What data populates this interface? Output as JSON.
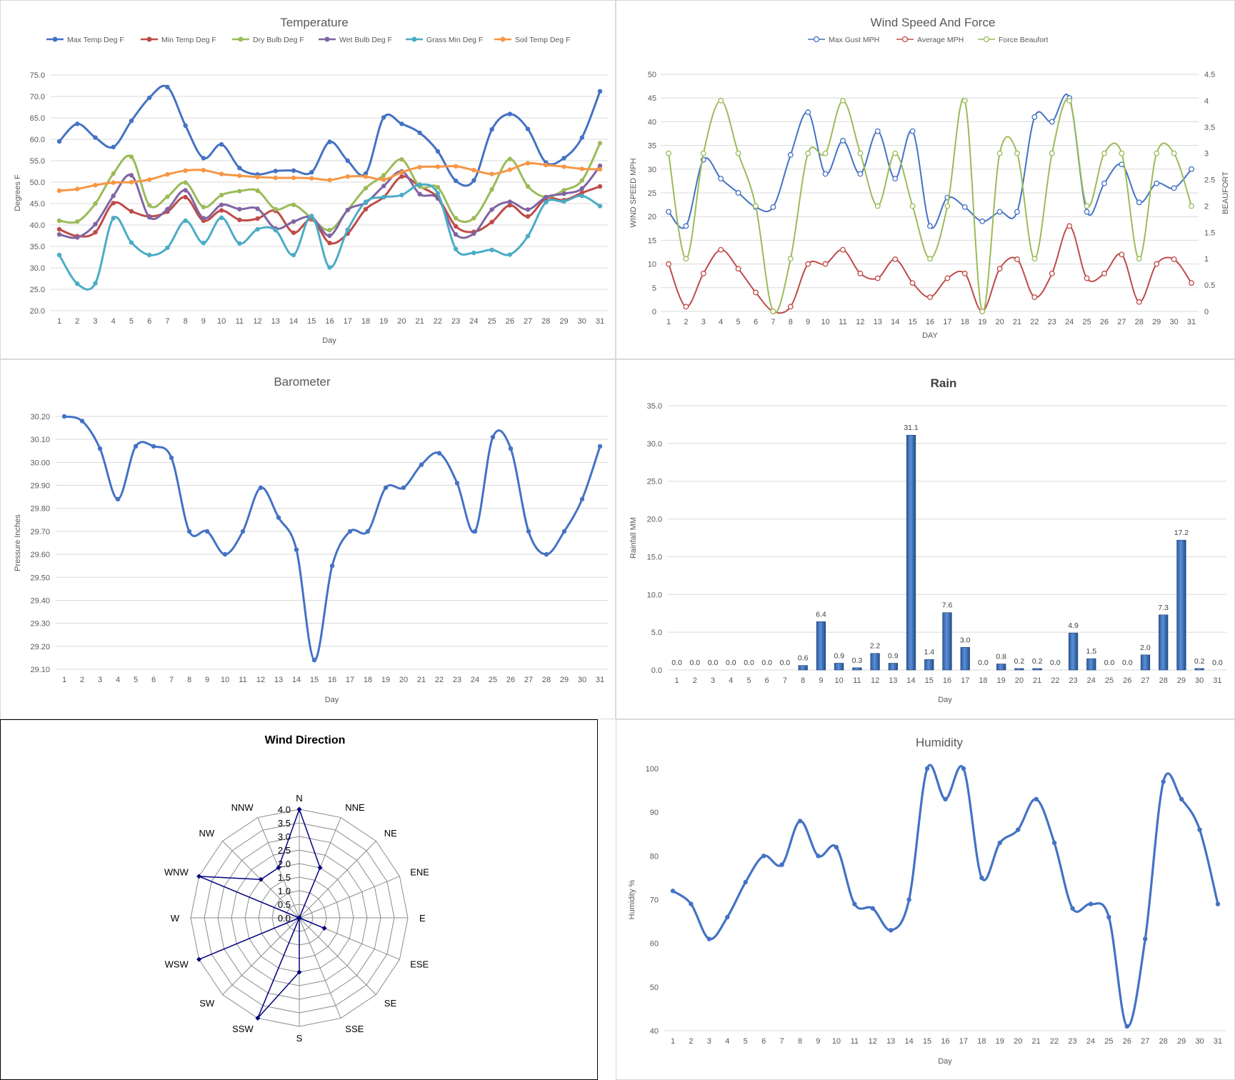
{
  "chart_data": [
    {
      "id": "temperature",
      "type": "line",
      "title": "Temperature",
      "xlabel": "Day",
      "ylabel": "Degrees F",
      "ylim": [
        20,
        75
      ],
      "ystep": 5,
      "ydecimals": 1,
      "grid": true,
      "legend": "top",
      "x": [
        1,
        2,
        3,
        4,
        5,
        6,
        7,
        8,
        9,
        10,
        11,
        12,
        13,
        14,
        15,
        16,
        17,
        18,
        19,
        20,
        21,
        22,
        23,
        24,
        25,
        26,
        27,
        28,
        29,
        30,
        31
      ],
      "series": [
        {
          "name": "Max Temp Deg F",
          "color": "#4472c4",
          "values": [
            59.5,
            63.6,
            60.4,
            58.2,
            64.3,
            69.7,
            72.2,
            63.2,
            55.6,
            58.8,
            53.3,
            51.8,
            52.6,
            52.7,
            52.3,
            59.4,
            55.0,
            52.0,
            65.1,
            63.6,
            61.5,
            57.2,
            50.3,
            50.4,
            62.3,
            65.9,
            62.4,
            54.6,
            55.6,
            60.4,
            71.2
          ]
        },
        {
          "name": "Min Temp Deg F",
          "color": "#be4b48",
          "values": [
            39.0,
            37.4,
            38.3,
            45.1,
            43.2,
            42.0,
            43.1,
            46.5,
            41.0,
            43.4,
            41.2,
            41.5,
            43.3,
            38.2,
            41.3,
            35.8,
            38.0,
            43.7,
            46.5,
            51.3,
            49.0,
            46.4,
            39.7,
            38.4,
            40.7,
            44.6,
            42.0,
            46.2,
            45.8,
            47.5,
            49.0
          ]
        },
        {
          "name": "Dry Bulb Deg F",
          "color": "#9bbb59",
          "values": [
            41.0,
            40.8,
            45.0,
            52.0,
            55.9,
            44.6,
            46.6,
            49.9,
            44.2,
            47.0,
            47.9,
            48.0,
            43.7,
            44.7,
            41.6,
            38.8,
            43.5,
            48.6,
            51.6,
            55.3,
            49.0,
            48.8,
            41.6,
            41.6,
            48.3,
            55.4,
            49.0,
            46.5,
            48.1,
            50.4,
            59.1
          ]
        },
        {
          "name": "Wet Bulb Deg F",
          "color": "#8064a2",
          "values": [
            37.8,
            37.1,
            40.2,
            46.8,
            51.6,
            41.8,
            43.7,
            48.1,
            41.6,
            44.7,
            43.7,
            43.8,
            39.2,
            40.8,
            41.8,
            37.5,
            43.5,
            45.2,
            49.1,
            52.5,
            47.2,
            46.2,
            37.8,
            38.0,
            43.6,
            45.4,
            43.6,
            46.5,
            47.3,
            48.5,
            53.8
          ]
        },
        {
          "name": "Grass Min Deg F",
          "color": "#4bacc6",
          "values": [
            33.0,
            26.3,
            26.4,
            41.6,
            35.9,
            33.0,
            34.7,
            41.0,
            35.8,
            41.7,
            35.7,
            39.0,
            38.8,
            33.0,
            42.1,
            30.1,
            38.9,
            45.4,
            46.5,
            47.0,
            49.4,
            47.4,
            34.4,
            33.5,
            34.2,
            33.1,
            37.4,
            45.3,
            45.5,
            46.8,
            44.4
          ]
        },
        {
          "name": "Soil Temp Deg F",
          "color": "#f79646",
          "values": [
            48.0,
            48.4,
            49.3,
            49.9,
            50.0,
            50.6,
            51.8,
            52.7,
            52.8,
            51.9,
            51.5,
            51.2,
            51.0,
            51.0,
            50.9,
            50.5,
            51.3,
            51.3,
            50.6,
            52.3,
            53.5,
            53.6,
            53.7,
            52.8,
            51.9,
            52.9,
            54.4,
            54.0,
            53.6,
            53.1,
            53.0
          ]
        }
      ]
    },
    {
      "id": "wind_speed",
      "type": "line",
      "title": "Wind Speed And Force",
      "xlabel": "DAY",
      "ylabel": "WIND SPEED MPH",
      "y2label": "BEAUFORT",
      "ylim": [
        0,
        50
      ],
      "ystep": 5,
      "y2lim": [
        0,
        4.5
      ],
      "y2step": 0.5,
      "grid": true,
      "legend": "top",
      "x": [
        1,
        2,
        3,
        4,
        5,
        6,
        7,
        8,
        9,
        10,
        11,
        12,
        13,
        14,
        15,
        16,
        17,
        18,
        19,
        20,
        21,
        22,
        23,
        24,
        25,
        26,
        27,
        28,
        29,
        30,
        31
      ],
      "series": [
        {
          "name": "Max Gust MPH",
          "color": "#4472c4",
          "axis": "left",
          "values": [
            21,
            18,
            32,
            28,
            25,
            22,
            22,
            33,
            42,
            29,
            36,
            29,
            38,
            28,
            38,
            18,
            24,
            22,
            19,
            21,
            21,
            41,
            40,
            45,
            21,
            27,
            31,
            23,
            27,
            26,
            30
          ]
        },
        {
          "name": "Average MPH",
          "color": "#be4b48",
          "axis": "left",
          "values": [
            10,
            1,
            8,
            13,
            9,
            4,
            0,
            1,
            10,
            10,
            13,
            8,
            7,
            11,
            6,
            3,
            7,
            8,
            0,
            9,
            11,
            3,
            8,
            18,
            7,
            8,
            12,
            2,
            10,
            11,
            6
          ]
        },
        {
          "name": "Force Beaufort",
          "color": "#9bbb59",
          "axis": "right",
          "values": [
            3,
            1,
            3,
            4,
            3,
            2,
            0,
            1,
            3,
            3,
            4,
            3,
            2,
            3,
            2,
            1,
            2,
            4,
            0,
            3,
            3,
            1,
            3,
            4,
            2,
            3,
            3,
            1,
            3,
            3,
            2
          ]
        }
      ]
    },
    {
      "id": "barometer",
      "type": "line",
      "title": "Barometer",
      "xlabel": "Day",
      "ylabel": "Pressure Inches",
      "ylim": [
        29.1,
        30.2
      ],
      "ystep": 0.1,
      "ydecimals": 2,
      "grid": true,
      "x": [
        1,
        2,
        3,
        4,
        5,
        6,
        7,
        8,
        9,
        10,
        11,
        12,
        13,
        14,
        15,
        16,
        17,
        18,
        19,
        20,
        21,
        22,
        23,
        24,
        25,
        26,
        27,
        28,
        29,
        30,
        31
      ],
      "series": [
        {
          "name": "",
          "color": "#4472c4",
          "values": [
            30.2,
            30.18,
            30.06,
            29.84,
            30.07,
            30.07,
            30.02,
            29.7,
            29.7,
            29.6,
            29.7,
            29.89,
            29.76,
            29.62,
            29.14,
            29.55,
            29.7,
            29.7,
            29.89,
            29.89,
            29.99,
            30.04,
            29.91,
            29.7,
            30.11,
            30.06,
            29.7,
            29.6,
            29.7,
            29.84,
            30.07
          ]
        }
      ]
    },
    {
      "id": "rain",
      "type": "bar",
      "title": "Rain",
      "xlabel": "Day",
      "ylabel": "Rainfall MM",
      "ylim": [
        0,
        35
      ],
      "ystep": 5,
      "ydecimals": 1,
      "grid": true,
      "categories": [
        "1",
        "2",
        "3",
        "4",
        "5",
        "6",
        "7",
        "8",
        "9",
        "10",
        "11",
        "12",
        "13",
        "14",
        "15",
        "16",
        "17",
        "18",
        "19",
        "20",
        "21",
        "22",
        "23",
        "24",
        "25",
        "26",
        "27",
        "28",
        "29",
        "30",
        "31"
      ],
      "values": [
        0.0,
        0.0,
        0.0,
        0.0,
        0.0,
        0.0,
        0.0,
        0.6,
        6.4,
        0.9,
        0.3,
        2.2,
        0.9,
        31.1,
        1.4,
        7.6,
        3.0,
        0.0,
        0.8,
        0.2,
        0.2,
        0.0,
        4.9,
        1.5,
        0.0,
        0.0,
        2.0,
        7.3,
        17.2,
        0.2,
        0.0
      ],
      "data_labels": [
        "0.0",
        "0.0",
        "0.0",
        "0.0",
        "0.0",
        "0.0",
        "0.0",
        "0.6",
        "6.4",
        "0.9",
        "0.3",
        "2.2",
        "0.9",
        "31.1",
        "1.4",
        "7.6",
        "3.0",
        "0.0",
        "0.8",
        "0.2",
        "0.2",
        "0.0",
        "4.9",
        "1.5",
        "0.0",
        "0.0",
        "2.0",
        "7.3",
        "17.2",
        "0.2",
        "0.0"
      ]
    },
    {
      "id": "wind_direction",
      "type": "radar",
      "title": "Wind Direction",
      "categories": [
        "N",
        "NNE",
        "NE",
        "ENE",
        "E",
        "ESE",
        "SE",
        "SSE",
        "S",
        "SSW",
        "SW",
        "WSW",
        "W",
        "WNW",
        "NW",
        "NNW"
      ],
      "values": [
        4,
        2,
        0,
        0,
        0,
        1,
        0,
        0,
        2,
        4,
        0,
        4,
        0,
        4,
        2,
        2
      ],
      "rlim": [
        0,
        4
      ],
      "rstep": 0.5,
      "tick_labels": [
        "0.0",
        "0.5",
        "1.0",
        "1.5",
        "2.0",
        "2.5",
        "3.0",
        "3.5",
        "4.0"
      ],
      "color": "#000080"
    },
    {
      "id": "humidity",
      "type": "line",
      "title": "Humidity",
      "xlabel": "Day",
      "ylabel": "Humidity %",
      "ylim": [
        40,
        100
      ],
      "ystep": 10,
      "ydecimals": 0,
      "grid": false,
      "x": [
        1,
        2,
        3,
        4,
        5,
        6,
        7,
        8,
        9,
        10,
        11,
        12,
        13,
        14,
        15,
        16,
        17,
        18,
        19,
        20,
        21,
        22,
        23,
        24,
        25,
        26,
        27,
        28,
        29,
        30,
        31
      ],
      "series": [
        {
          "name": "",
          "color": "#4472c4",
          "values": [
            72,
            69,
            61,
            66,
            74,
            80,
            78,
            88,
            80,
            82,
            69,
            68,
            63,
            70,
            100,
            93,
            100,
            75,
            83,
            86,
            93,
            83,
            68,
            69,
            66,
            41,
            61,
            97,
            93,
            86,
            69
          ]
        }
      ]
    }
  ]
}
